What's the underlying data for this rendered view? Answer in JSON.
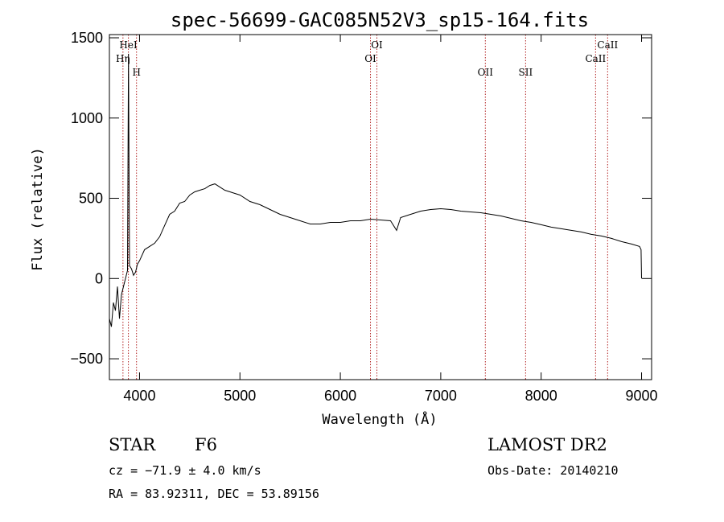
{
  "chart_data": {
    "type": "line",
    "title": "spec-56699-GAC085N52V3_sp15-164.fits",
    "xlabel": "Wavelength (Å)",
    "ylabel": "Flux (relative)",
    "xlim": [
      3700,
      9100
    ],
    "ylim": [
      -630,
      1520
    ],
    "x_ticks": [
      4000,
      5000,
      6000,
      7000,
      8000,
      9000
    ],
    "y_ticks": [
      -500,
      0,
      500,
      1000,
      1500
    ],
    "grid": false,
    "lines": [
      {
        "name": "Hη",
        "wavelength": 3835,
        "label_pos": "low"
      },
      {
        "name": "HeI",
        "wavelength": 3889,
        "label_pos": "high"
      },
      {
        "name": "H",
        "wavelength": 3970,
        "label_pos": "mid"
      },
      {
        "name": "OI",
        "wavelength": 6300,
        "label_pos": "low"
      },
      {
        "name": "OI",
        "wavelength": 6364,
        "label_pos": "high"
      },
      {
        "name": "OII",
        "wavelength": 7444,
        "label_pos": "mid"
      },
      {
        "name": "SII",
        "wavelength": 7845,
        "label_pos": "mid"
      },
      {
        "name": "CaII",
        "wavelength": 8542,
        "label_pos": "low"
      },
      {
        "name": "CaII",
        "wavelength": 8662,
        "label_pos": "high"
      }
    ],
    "series": [
      {
        "name": "",
        "x": [
          3700,
          3720,
          3740,
          3760,
          3780,
          3800,
          3820,
          3840,
          3860,
          3880,
          3890,
          3900,
          3920,
          3940,
          3960,
          3980,
          4000,
          4050,
          4100,
          4150,
          4200,
          4250,
          4300,
          4350,
          4400,
          4450,
          4500,
          4550,
          4600,
          4650,
          4700,
          4750,
          4800,
          4850,
          4900,
          4950,
          5000,
          5100,
          5200,
          5300,
          5400,
          5500,
          5600,
          5700,
          5800,
          5900,
          6000,
          6100,
          6200,
          6300,
          6400,
          6500,
          6560,
          6600,
          6700,
          6800,
          6900,
          7000,
          7100,
          7200,
          7300,
          7400,
          7500,
          7600,
          7700,
          7800,
          7900,
          8000,
          8100,
          8200,
          8300,
          8400,
          8500,
          8600,
          8700,
          8800,
          8900,
          8980,
          8995,
          9000
        ],
        "y": [
          -250,
          -300,
          -150,
          -200,
          -50,
          -250,
          -100,
          -50,
          0,
          50,
          1400,
          80,
          60,
          20,
          40,
          90,
          110,
          180,
          200,
          220,
          260,
          330,
          400,
          420,
          470,
          480,
          520,
          540,
          550,
          560,
          580,
          590,
          570,
          550,
          540,
          530,
          520,
          480,
          460,
          430,
          400,
          380,
          360,
          340,
          340,
          350,
          350,
          360,
          360,
          370,
          365,
          360,
          300,
          380,
          400,
          420,
          430,
          435,
          430,
          420,
          415,
          410,
          400,
          390,
          375,
          360,
          350,
          335,
          320,
          310,
          300,
          290,
          275,
          265,
          250,
          230,
          215,
          200,
          180,
          0
        ]
      }
    ]
  },
  "info": {
    "object_type": "STAR",
    "subclass": "F6",
    "cz": "cz = −71.9 ± 4.0 km/s",
    "coords": "RA =  83.92311, DEC =  53.89156",
    "survey": "LAMOST DR2",
    "obs_date": "Obs-Date: 20140210"
  }
}
